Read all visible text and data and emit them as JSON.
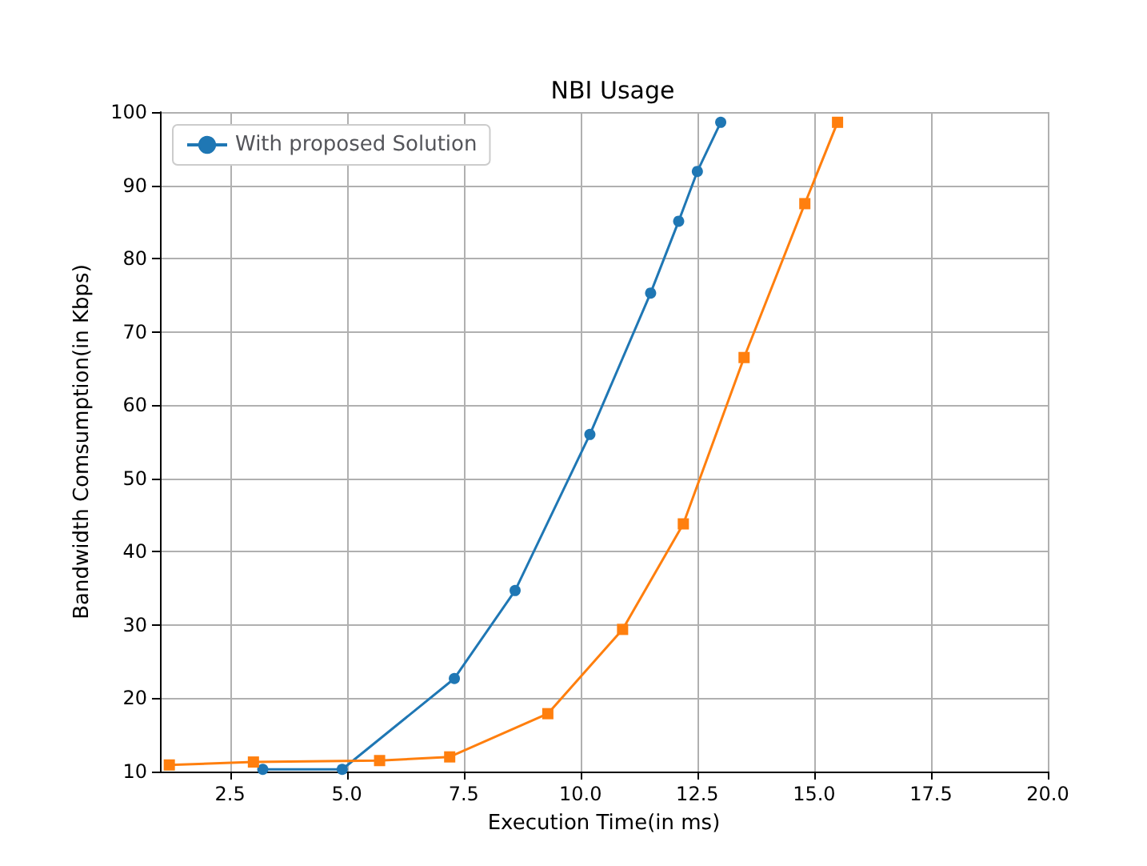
{
  "chart_data": {
    "type": "line",
    "title": "NBI Usage",
    "xlabel": "Execution Time(in ms)",
    "ylabel": "Bandwidth Comsumption(in Kbps)",
    "xlim": [
      1,
      20
    ],
    "xticks": [
      2.5,
      {
        "value": 5,
        "label": "5.0"
      },
      7.5,
      {
        "value": 10,
        "label": "10.0"
      },
      12.5,
      {
        "value": 15,
        "label": "15.0"
      },
      17.5,
      {
        "value": 20,
        "label": "20.0"
      }
    ],
    "ylim": [
      10,
      100
    ],
    "yticks": [
      10,
      20,
      30,
      40,
      50,
      60,
      70,
      80,
      90,
      100
    ],
    "grid": true,
    "legend": "top left",
    "line_style": "solid",
    "series": [
      {
        "name": "With proposed Solution",
        "color": "#1f77b4",
        "marker": "circle",
        "x": [
          3.2,
          4.9,
          7.3,
          8.6,
          10.2,
          11.5,
          12.1,
          12.5,
          13.0
        ],
        "values": [
          10.3,
          10.3,
          22.7,
          34.7,
          56,
          75.3,
          85.1,
          91.9,
          98.6
        ]
      },
      {
        "color": "#ff7f0e",
        "marker": "square",
        "x": [
          1.2,
          3.0,
          5.7,
          7.2,
          9.3,
          10.9,
          12.2,
          13.5,
          14.8,
          15.5
        ],
        "values": [
          10.9,
          11.3,
          11.5,
          12,
          17.9,
          29.4,
          43.8,
          66.5,
          87.5,
          98.6
        ]
      }
    ]
  }
}
